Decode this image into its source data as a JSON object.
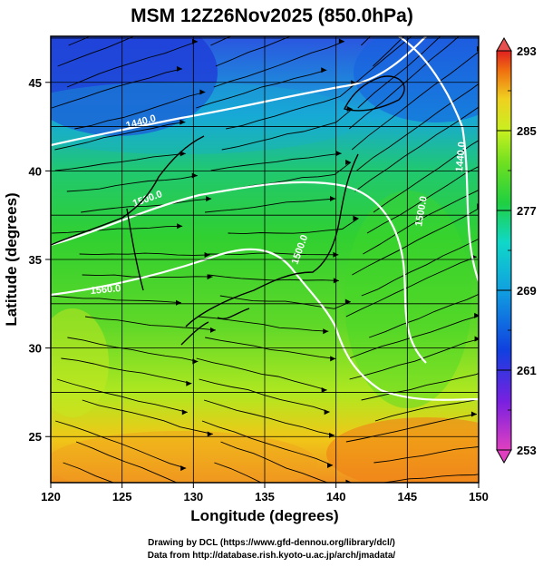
{
  "chart_data": {
    "type": "heatmap",
    "title": "MSM 12Z26Nov2025 (850.0hPa)",
    "xlabel": "Longitude (degrees)",
    "ylabel": "Latitude  (degrees)",
    "xlim": [
      120,
      150
    ],
    "ylim": [
      22.4,
      47.6
    ],
    "x_ticks": [
      "120",
      "125",
      "130",
      "135",
      "140",
      "145",
      "150"
    ],
    "y_ticks": [
      "25",
      "30",
      "35",
      "40",
      "45"
    ],
    "colorbar": {
      "min": 253,
      "max": 293,
      "ticks": [
        "293",
        "285",
        "277",
        "269",
        "261",
        "253"
      ]
    },
    "contour_labels": [
      "1440.0",
      "1500.0",
      "1560.0",
      "1500.0",
      "1500.0",
      "1440.0"
    ],
    "grid": true,
    "overlays": [
      "temperature shading",
      "geopotential height contours",
      "wind streamlines",
      "coastlines"
    ]
  },
  "credits": {
    "line1": "Drawing by DCL (https://www.gfd-dennou.org/library/dcl/)",
    "line2": "Data from http://database.rish.kyoto-u.ac.jp/arch/jmadata/"
  }
}
